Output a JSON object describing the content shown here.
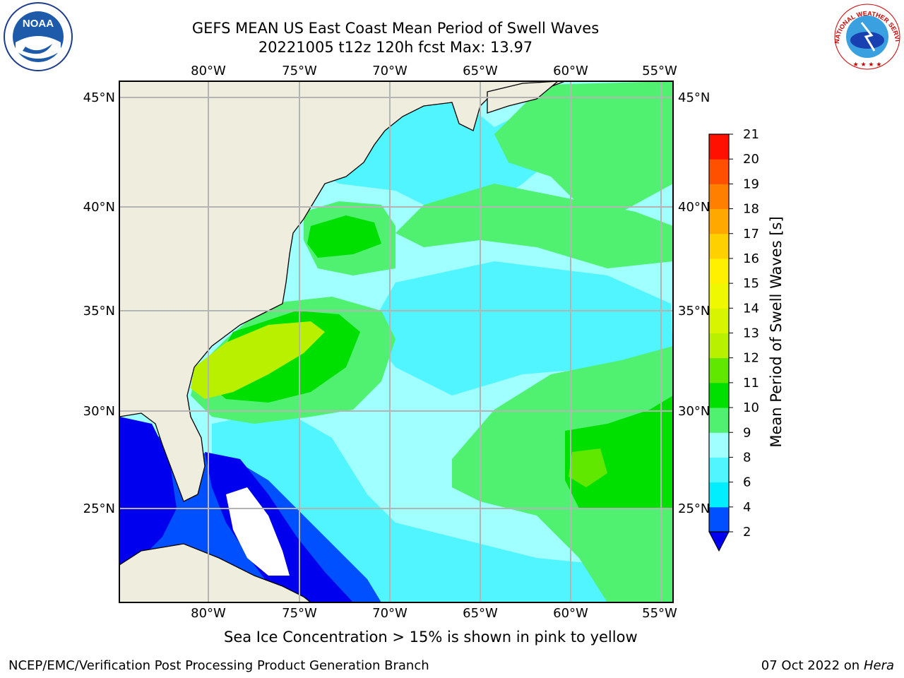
{
  "title": {
    "line1": "GEFS MEAN US East Coast Mean Period of Swell Waves",
    "line2": "20221005 t12z 120h fcst   Max: 13.97"
  },
  "lon_labels": [
    "80°W",
    "75°W",
    "70°W",
    "65°W",
    "60°W",
    "55°W"
  ],
  "lat_labels": [
    "45°N",
    "40°N",
    "35°N",
    "30°N",
    "25°N"
  ],
  "colorbar": {
    "label": "Mean Period of Swell Waves [s]",
    "ticks": [
      "2",
      "4",
      "6",
      "8",
      "9",
      "10",
      "11",
      "12",
      "13",
      "14",
      "15",
      "16",
      "17",
      "18",
      "19",
      "20",
      "21"
    ],
    "colors": [
      "#0050ff",
      "#00eeff",
      "#50f5ff",
      "#a0ffff",
      "#50f070",
      "#00e000",
      "#60e800",
      "#b8f000",
      "#d8f400",
      "#f0f800",
      "#fff000",
      "#ffd000",
      "#ffa800",
      "#ff8000",
      "#ff5000",
      "#ff1000"
    ],
    "under_color": "#0000ee"
  },
  "colors": {
    "land": "#efedde",
    "grid": "#b4b4b4",
    "coast": "#000000"
  },
  "caption": "Sea Ice Concentration > 15% is shown in pink to yellow",
  "footer": {
    "left": "NCEP/EMC/Verification Post Processing Product Generation Branch",
    "right_date": "07 Oct 2022 on ",
    "right_machine": "Hera"
  },
  "logos": {
    "noaa": "NOAA",
    "nws": "NATIONAL WEATHER SERVICE"
  }
}
